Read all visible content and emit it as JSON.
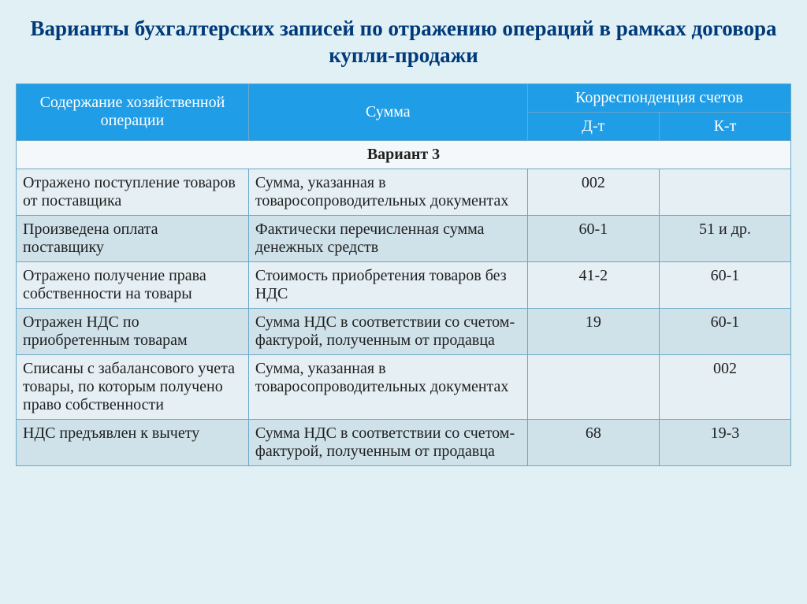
{
  "title": "Варианты бухгалтерских записей по отражению операций в рамках договора купли-продажи",
  "columns": {
    "op": "Содержание хозяйственной операции",
    "sum": "Сумма",
    "corr": "Корреспонденция счетов",
    "dt": "Д-т",
    "kt": "К-т"
  },
  "section": "Вариант 3",
  "rows": [
    {
      "op": "Отражено поступление товаров от поставщика",
      "sum": "Сумма, указанная в товаросопроводительных документах",
      "dt": "002",
      "kt": ""
    },
    {
      "op": "Произведена оплата поставщику",
      "sum": "Фактически перечисленная сумма денежных средств",
      "dt": "60-1",
      "kt": "51 и др."
    },
    {
      "op": "Отражено получение права собственности на товары",
      "sum": "Стоимость приобретения товаров без НДС",
      "dt": "41-2",
      "kt": "60-1"
    },
    {
      "op": "Отражен НДС по приобретенным товарам",
      "sum": "Сумма НДС в соответствии со счетом-фактурой, полученным от продавца",
      "dt": "19",
      "kt": "60-1"
    },
    {
      "op": "Списаны с забалансового учета товары, по которым получено право собственности",
      "sum": "Сумма, указанная в товаросопроводительных документах",
      "dt": "",
      "kt": "002"
    },
    {
      "op": "НДС предъявлен к вычету",
      "sum": " Сумма НДС в соответствии со счетом-фактурой, полученным от продавца",
      "dt": "68",
      "kt": "19-3"
    }
  ],
  "style": {
    "header_bg": "#1f9de6",
    "header_fg": "#ffffff",
    "border_color": "#6aa8c8",
    "row_odd_bg": "#cfe2ea",
    "row_even_bg": "#e6f0f4",
    "section_bg": "#f5f8fa",
    "page_bg": "#e0f0f4",
    "title_color": "#003a7a",
    "title_fontsize_pt": 20,
    "body_fontsize_pt": 15
  }
}
